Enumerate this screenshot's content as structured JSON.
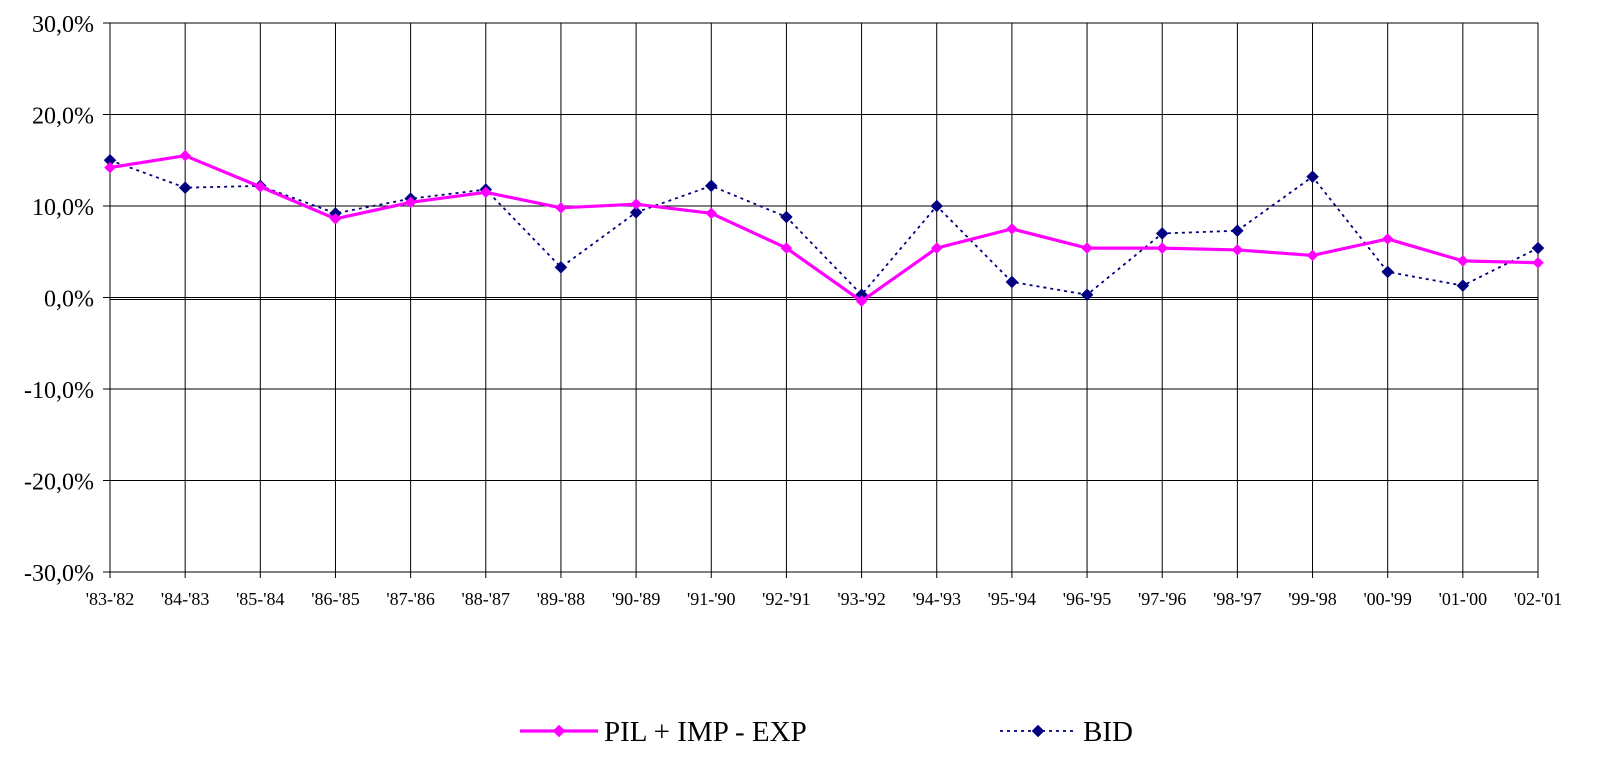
{
  "chart_data": {
    "type": "line",
    "title": "",
    "xlabel": "",
    "ylabel": "",
    "ylim": [
      -30,
      30
    ],
    "yticks": [
      30,
      20,
      10,
      0,
      -10,
      -20,
      -30
    ],
    "ytick_labels": [
      "30,0%",
      "20,0%",
      "10,0%",
      "0,0%",
      "-10,0%",
      "-20,0%",
      "-30,0%"
    ],
    "categories": [
      "'83-'82",
      "'84-'83",
      "'85-'84",
      "'86-'85",
      "'87-'86",
      "'88-'87",
      "'89-'88",
      "'90-'89",
      "'91-'90",
      "'92-'91",
      "'93-'92",
      "'94-'93",
      "'95-'94",
      "'96-'95",
      "'97-'96",
      "'98-'97",
      "'99-'98",
      "'00-'99",
      "'01-'00",
      "'02-'01"
    ],
    "grid": true,
    "legend_position": "bottom",
    "series": [
      {
        "name": "PIL + IMP - EXP",
        "color": "#ff00ff",
        "line_style": "solid",
        "marker": "diamond",
        "values": [
          14.2,
          15.5,
          12.1,
          8.6,
          10.4,
          11.5,
          9.8,
          10.2,
          9.2,
          5.4,
          -0.4,
          5.4,
          7.5,
          5.4,
          5.4,
          5.2,
          4.6,
          6.4,
          4.0,
          3.8
        ]
      },
      {
        "name": "BID",
        "color": "#000080",
        "line_style": "dotted",
        "marker": "diamond",
        "values": [
          15.0,
          12.0,
          12.2,
          9.2,
          10.8,
          11.8,
          3.3,
          9.3,
          12.2,
          8.8,
          0.3,
          10.0,
          1.7,
          0.3,
          7.0,
          7.3,
          13.2,
          2.8,
          1.3,
          5.4
        ]
      }
    ]
  }
}
